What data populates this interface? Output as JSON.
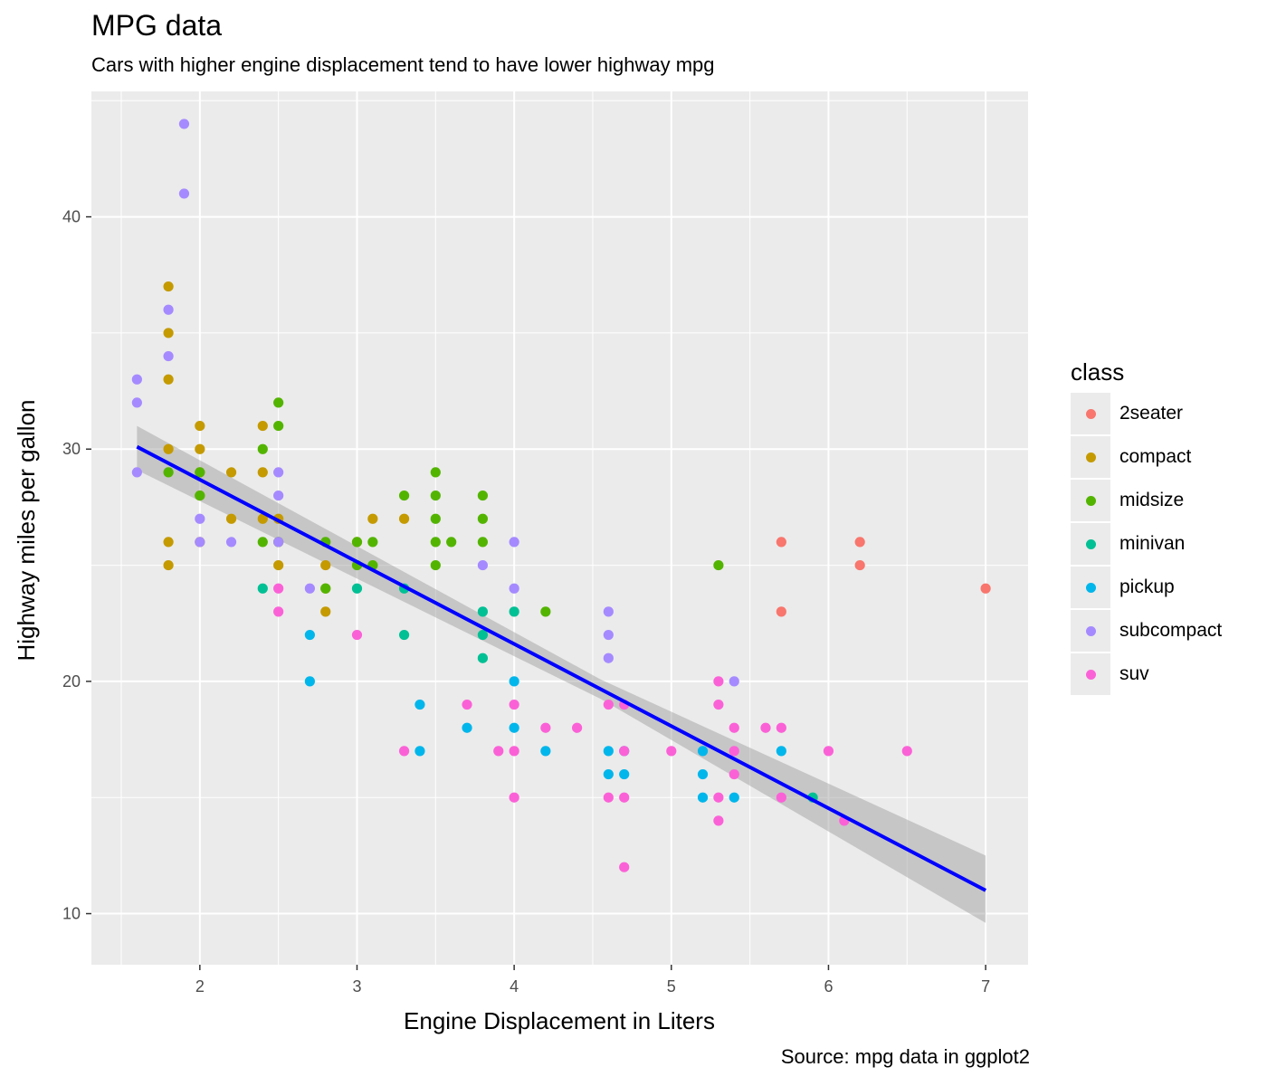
{
  "chart_data": {
    "type": "scatter",
    "title": "MPG data",
    "subtitle": "Cars with higher engine displacement tend to have lower highway mpg",
    "caption": "Source: mpg data in ggplot2",
    "xlabel": "Engine Displacement in Liters",
    "ylabel": "Highway miles per gallon",
    "xlim": [
      1.31,
      7.27
    ],
    "ylim": [
      7.8,
      45.4
    ],
    "x_ticks": [
      2,
      3,
      4,
      5,
      6,
      7
    ],
    "y_ticks": [
      10,
      20,
      30,
      40
    ],
    "grid": true,
    "legend": {
      "title": "class",
      "position": "right"
    },
    "trend": {
      "type": "linear",
      "color": "#0000ff",
      "start": [
        1.6,
        30.1
      ],
      "end": [
        7.0,
        11.0
      ],
      "ci_at_start": [
        29.1,
        31.0
      ],
      "ci_at_end": [
        9.6,
        12.5
      ]
    },
    "series": [
      {
        "name": "2seater",
        "color": "#F8766D",
        "points": [
          [
            5.7,
            26
          ],
          [
            5.7,
            23
          ],
          [
            6.2,
            26
          ],
          [
            6.2,
            25
          ],
          [
            7.0,
            24
          ]
        ]
      },
      {
        "name": "compact",
        "color": "#C49A00",
        "points": [
          [
            1.8,
            37
          ],
          [
            1.8,
            35
          ],
          [
            1.8,
            33
          ],
          [
            1.8,
            30
          ],
          [
            1.8,
            26
          ],
          [
            1.8,
            25
          ],
          [
            2.0,
            31
          ],
          [
            2.0,
            30
          ],
          [
            2.0,
            29
          ],
          [
            2.0,
            28
          ],
          [
            2.0,
            26
          ],
          [
            2.2,
            29
          ],
          [
            2.2,
            27
          ],
          [
            2.4,
            31
          ],
          [
            2.4,
            29
          ],
          [
            2.4,
            27
          ],
          [
            2.5,
            27
          ],
          [
            2.5,
            26
          ],
          [
            2.5,
            25
          ],
          [
            2.8,
            25
          ],
          [
            2.8,
            24
          ],
          [
            2.8,
            23
          ],
          [
            3.0,
            26
          ],
          [
            3.1,
            27
          ],
          [
            3.3,
            27
          ]
        ]
      },
      {
        "name": "midsize",
        "color": "#53B400",
        "points": [
          [
            1.8,
            29
          ],
          [
            2.0,
            29
          ],
          [
            2.0,
            28
          ],
          [
            2.4,
            30
          ],
          [
            2.4,
            26
          ],
          [
            2.5,
            32
          ],
          [
            2.5,
            31
          ],
          [
            2.5,
            26
          ],
          [
            2.8,
            26
          ],
          [
            2.8,
            24
          ],
          [
            3.0,
            26
          ],
          [
            3.0,
            25
          ],
          [
            3.1,
            26
          ],
          [
            3.1,
            25
          ],
          [
            3.3,
            28
          ],
          [
            3.5,
            29
          ],
          [
            3.5,
            28
          ],
          [
            3.5,
            27
          ],
          [
            3.5,
            26
          ],
          [
            3.5,
            25
          ],
          [
            3.6,
            26
          ],
          [
            3.8,
            28
          ],
          [
            3.8,
            27
          ],
          [
            3.8,
            26
          ],
          [
            4.2,
            23
          ],
          [
            5.3,
            25
          ]
        ]
      },
      {
        "name": "minivan",
        "color": "#00C094",
        "points": [
          [
            2.4,
            24
          ],
          [
            3.0,
            24
          ],
          [
            3.3,
            24
          ],
          [
            3.3,
            22
          ],
          [
            3.8,
            23
          ],
          [
            3.8,
            22
          ],
          [
            3.8,
            21
          ],
          [
            4.0,
            23
          ],
          [
            5.9,
            15
          ]
        ]
      },
      {
        "name": "pickup",
        "color": "#00B6EB",
        "points": [
          [
            2.7,
            22
          ],
          [
            2.7,
            20
          ],
          [
            3.4,
            19
          ],
          [
            3.4,
            17
          ],
          [
            3.7,
            18
          ],
          [
            4.0,
            20
          ],
          [
            4.0,
            18
          ],
          [
            4.2,
            17
          ],
          [
            4.6,
            17
          ],
          [
            4.6,
            16
          ],
          [
            4.7,
            17
          ],
          [
            4.7,
            16
          ],
          [
            5.2,
            17
          ],
          [
            5.2,
            16
          ],
          [
            5.2,
            15
          ],
          [
            5.4,
            15
          ],
          [
            5.7,
            17
          ]
        ]
      },
      {
        "name": "subcompact",
        "color": "#A58AFF",
        "points": [
          [
            1.6,
            33
          ],
          [
            1.6,
            32
          ],
          [
            1.6,
            29
          ],
          [
            1.8,
            36
          ],
          [
            1.8,
            34
          ],
          [
            1.9,
            44
          ],
          [
            1.9,
            41
          ],
          [
            2.0,
            27
          ],
          [
            2.0,
            26
          ],
          [
            2.2,
            26
          ],
          [
            2.5,
            29
          ],
          [
            2.5,
            28
          ],
          [
            2.5,
            26
          ],
          [
            2.7,
            24
          ],
          [
            3.8,
            25
          ],
          [
            4.0,
            26
          ],
          [
            4.0,
            24
          ],
          [
            4.6,
            23
          ],
          [
            4.6,
            22
          ],
          [
            4.6,
            21
          ],
          [
            5.4,
            20
          ]
        ]
      },
      {
        "name": "suv",
        "color": "#FB61D7",
        "points": [
          [
            2.5,
            24
          ],
          [
            2.5,
            23
          ],
          [
            3.0,
            22
          ],
          [
            3.3,
            17
          ],
          [
            3.7,
            19
          ],
          [
            3.9,
            17
          ],
          [
            4.0,
            19
          ],
          [
            4.0,
            17
          ],
          [
            4.0,
            15
          ],
          [
            4.2,
            18
          ],
          [
            4.4,
            18
          ],
          [
            4.6,
            19
          ],
          [
            4.6,
            15
          ],
          [
            4.7,
            19
          ],
          [
            4.7,
            17
          ],
          [
            4.7,
            15
          ],
          [
            4.7,
            12
          ],
          [
            5.0,
            17
          ],
          [
            5.3,
            20
          ],
          [
            5.3,
            19
          ],
          [
            5.3,
            15
          ],
          [
            5.3,
            14
          ],
          [
            5.4,
            18
          ],
          [
            5.4,
            17
          ],
          [
            5.4,
            16
          ],
          [
            5.6,
            18
          ],
          [
            5.7,
            18
          ],
          [
            5.7,
            15
          ],
          [
            6.0,
            17
          ],
          [
            6.1,
            14
          ],
          [
            6.5,
            17
          ]
        ]
      }
    ]
  }
}
